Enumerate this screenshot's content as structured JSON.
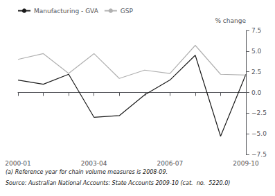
{
  "chart_data": {
    "type": "line",
    "categories": [
      "2000-01",
      null,
      null,
      "2003-04",
      null,
      null,
      "2006-07",
      null,
      null,
      "2009-10"
    ],
    "series": [
      {
        "name": "Manufacturing - GVA",
        "color": "#1a1a1a",
        "values": [
          1.5,
          1.0,
          2.2,
          -3.0,
          -2.8,
          -0.3,
          1.5,
          4.5,
          -5.3,
          2.2
        ]
      },
      {
        "name": "GSP",
        "color": "#b0b0b0",
        "values": [
          4.0,
          4.7,
          2.3,
          4.7,
          1.7,
          2.7,
          2.3,
          5.7,
          2.2,
          2.1
        ]
      }
    ],
    "y_label": "% change",
    "ylim": [
      -7.5,
      7.5
    ],
    "yticks": [
      {
        "value": -7.5,
        "label": "−7.5"
      },
      {
        "value": -5.0,
        "label": "−5.0"
      },
      {
        "value": -2.5,
        "label": "−2.5"
      },
      {
        "value": 0.0,
        "label": "0.0"
      },
      2.5,
      {
        "value": 5.0,
        "label": "5.0"
      },
      7.5
    ],
    "grid": false,
    "legend": "upper left",
    "annotations": [
      "(a) Reference year for chain volume measures is 2008-09.",
      "Source: Australian National Accounts: State Accounts 2009-10 (cat.  no.  5220.0)"
    ]
  }
}
